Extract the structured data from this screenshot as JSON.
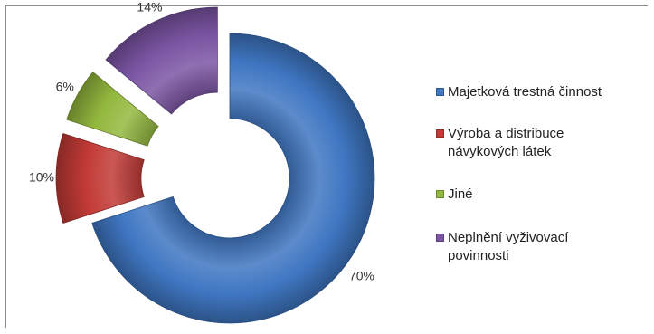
{
  "chart_data": {
    "type": "pie",
    "variant": "exploded doughnut (3D bevel)",
    "title": "",
    "unit": "%",
    "series": [
      {
        "name": "Majetková trestná činnost",
        "value": 70,
        "label": "70%",
        "color": "#3f77c2"
      },
      {
        "name": "Výroba a distribuce návykových látek",
        "value": 10,
        "label": "10%",
        "color": "#c23a36"
      },
      {
        "name": "Jiné",
        "value": 6,
        "label": "6%",
        "color": "#93b83e"
      },
      {
        "name": "Neplnění vyživovací povinnosti",
        "value": 14,
        "label": "14%",
        "color": "#7b55a3"
      }
    ],
    "legend": {
      "position": "right",
      "lines": [
        [
          "Majetková trestná činnost"
        ],
        [
          "Výroba a distribuce",
          "návykových látek"
        ],
        [
          "Jiné"
        ],
        [
          "Neplnění vyživovací",
          "povinnosti"
        ]
      ]
    }
  }
}
